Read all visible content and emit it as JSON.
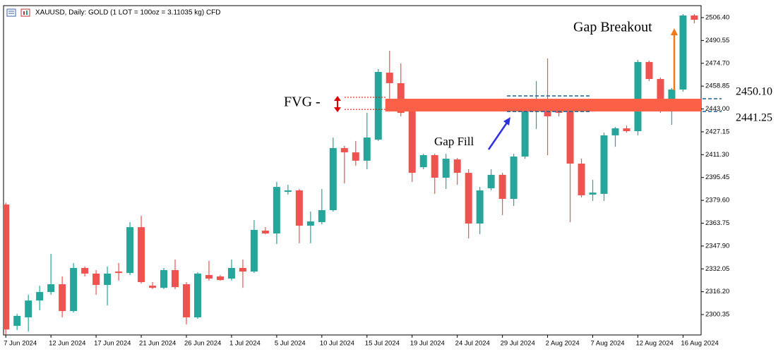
{
  "chart_data": {
    "type": "candlestick",
    "title": "XAUUSD, Daily:  GOLD (1 LOT = 100oz = 3.11035 kg) CFD",
    "up_color": "#26a69a",
    "down_color": "#ef5350",
    "candles": {
      "open": [
        2376.7,
        2292.5,
        2298.4,
        2310.1,
        2316.0,
        2321.4,
        2302.8,
        2332.7,
        2328.8,
        2320.9,
        2330.2,
        2329.2,
        2361.0,
        2320.4,
        2318.9,
        2331.2,
        2321.4,
        2298.4,
        2327.8,
        2326.8,
        2325.3,
        2332.7,
        2330.2,
        2358.6,
        2356.6,
        2385.5,
        2386.5,
        2362.0,
        2364.5,
        2372.8,
        2415.9,
        2412.9,
        2407.1,
        2421.7,
        2468.2,
        2460.9,
        2441.3,
        2402.6,
        2411.0,
        2395.3,
        2408.0,
        2398.7,
        2363.5,
        2388.0,
        2397.3,
        2380.6,
        2410.0,
        2444.2,
        2445.2,
        2442.8,
        2441.3,
        2405.1,
        2383.6,
        2384.1,
        2424.7,
        2429.6,
        2427.6,
        2475.6,
        2463.8,
        2450.1,
        2456.5,
        2507.9
      ],
      "high": [
        2378.0,
        2300.9,
        2314.1,
        2320.4,
        2342.4,
        2326.8,
        2336.1,
        2333.7,
        2331.2,
        2333.7,
        2336.1,
        2364.5,
        2368.9,
        2322.9,
        2332.7,
        2338.5,
        2322.9,
        2329.7,
        2337.6,
        2327.8,
        2338.5,
        2338.5,
        2365.9,
        2361.0,
        2392.4,
        2390.4,
        2387.5,
        2371.8,
        2387.5,
        2423.2,
        2417.4,
        2420.8,
        2440.3,
        2470.7,
        2483.4,
        2474.6,
        2442.8,
        2411.9,
        2411.9,
        2411.9,
        2409.0,
        2401.2,
        2388.9,
        2401.2,
        2398.7,
        2411.9,
        2450.1,
        2462.4,
        2478.0,
        2450.1,
        2445.2,
        2408.5,
        2393.8,
        2426.6,
        2430.5,
        2431.5,
        2477.0,
        2476.5,
        2464.8,
        2457.5,
        2508.8,
        2508.8
      ],
      "low": [
        2286.5,
        2289.6,
        2288.6,
        2303.3,
        2314.1,
        2298.4,
        2301.8,
        2326.8,
        2314.1,
        2306.7,
        2323.9,
        2327.8,
        2321.9,
        2318.0,
        2318.0,
        2318.0,
        2293.5,
        2297.4,
        2323.9,
        2323.9,
        2323.9,
        2318.9,
        2329.2,
        2356.1,
        2349.3,
        2383.6,
        2349.8,
        2349.8,
        2363.0,
        2371.8,
        2391.4,
        2403.6,
        2401.2,
        2420.8,
        2441.3,
        2437.9,
        2392.4,
        2401.2,
        2384.1,
        2387.5,
        2390.4,
        2353.2,
        2356.1,
        2386.5,
        2369.4,
        2375.7,
        2408.5,
        2429.1,
        2411.0,
        2437.9,
        2364.5,
        2381.6,
        2379.2,
        2379.2,
        2416.8,
        2426.6,
        2424.7,
        2462.4,
        2440.3,
        2432.0,
        2455.0,
        2502.5
      ],
      "close": [
        2290.0,
        2299.4,
        2310.1,
        2316.0,
        2321.4,
        2302.8,
        2332.7,
        2328.8,
        2320.9,
        2328.8,
        2329.2,
        2361.0,
        2322.9,
        2318.9,
        2331.2,
        2319.4,
        2298.4,
        2328.8,
        2325.3,
        2324.3,
        2332.7,
        2330.2,
        2359.1,
        2356.6,
        2388.9,
        2386.5,
        2362.0,
        2365.0,
        2372.8,
        2415.9,
        2412.9,
        2407.1,
        2423.2,
        2468.7,
        2460.9,
        2440.3,
        2398.7,
        2411.0,
        2395.3,
        2408.5,
        2398.7,
        2363.5,
        2386.5,
        2397.3,
        2380.6,
        2410.0,
        2445.2,
        2445.2,
        2437.9,
        2440.3,
        2405.1,
        2383.1,
        2385.0,
        2424.7,
        2429.6,
        2427.6,
        2475.6,
        2463.8,
        2450.1,
        2456.5,
        2507.9,
        2504.9
      ]
    },
    "xlim": [
      -0.2,
      61.6
    ],
    "xticks": [
      {
        "value": 0,
        "label": "7 Jun 2024"
      },
      {
        "value": 4,
        "label": "12 Jun 2024"
      },
      {
        "value": 8,
        "label": "17 Jun 2024"
      },
      {
        "value": 12,
        "label": "21 Jun 2024"
      },
      {
        "value": 16,
        "label": "26 Jun 2024"
      },
      {
        "value": 20,
        "label": "1 Jul 2024"
      },
      {
        "value": 24,
        "label": "5 Jul 2024"
      },
      {
        "value": 28,
        "label": "10 Jul 2024"
      },
      {
        "value": 32,
        "label": "15 Jul 2024"
      },
      {
        "value": 36,
        "label": "19 Jul 2024"
      },
      {
        "value": 40,
        "label": "24 Jul 2024"
      },
      {
        "value": 44,
        "label": "29 Jul 2024"
      },
      {
        "value": 48,
        "label": "2 Aug 2024"
      },
      {
        "value": 52,
        "label": "7 Aug 2024"
      },
      {
        "value": 56,
        "label": "12 Aug 2024"
      },
      {
        "value": 60,
        "label": "16 Aug 2024"
      }
    ],
    "ylim": [
      2286.2,
      2514.7
    ],
    "yticks": [
      2300.35,
      {
        "value": 2316.2,
        "label": "2316.20"
      },
      2332.05,
      {
        "value": 2347.9,
        "label": "2347.90"
      },
      2363.75,
      {
        "value": 2379.6,
        "label": "2379.60"
      },
      2395.45,
      {
        "value": 2411.3,
        "label": "2411.30"
      },
      2427.15,
      {
        "value": 2443,
        "label": "2443.00"
      },
      2458.85,
      {
        "value": 2474.7,
        "label": "2474.70"
      },
      2490.55,
      {
        "value": 2506.4,
        "label": "2506.40"
      }
    ],
    "zone": {
      "start": 34,
      "top": {
        "value": 2450.1,
        "label": "2450.10"
      },
      "bottom": {
        "value": 2441.25,
        "label": "2441.25"
      },
      "color": "#fc6147"
    },
    "annotations": [
      {
        "text": "FVG -",
        "color": "#e00000"
      },
      {
        "text": "Gap Fill",
        "color": "#3030e0"
      },
      {
        "text": "Gap Breakout",
        "color": "#f07a1a"
      }
    ]
  }
}
